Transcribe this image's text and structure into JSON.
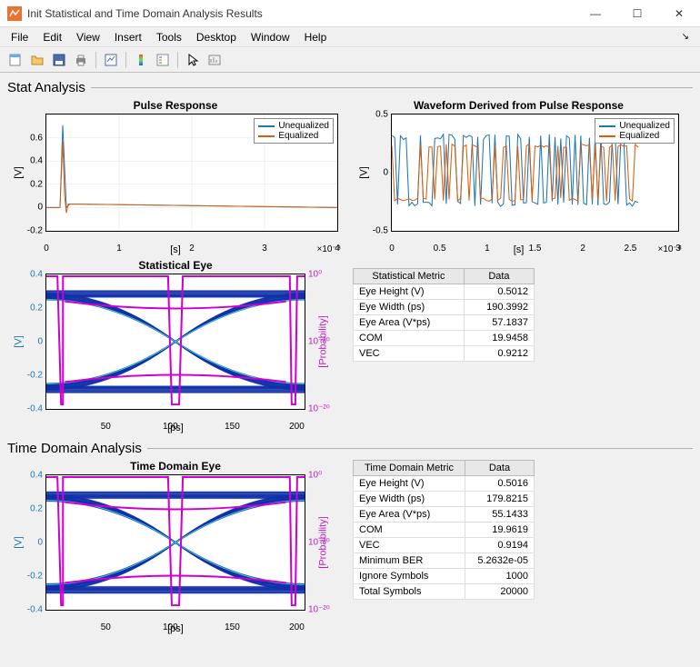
{
  "window": {
    "title": "Init Statistical and Time Domain Analysis Results"
  },
  "menu": {
    "items": [
      "File",
      "Edit",
      "View",
      "Insert",
      "Tools",
      "Desktop",
      "Window",
      "Help"
    ]
  },
  "sections": {
    "stat": {
      "title": "Stat Analysis",
      "pulse": {
        "title": "Pulse Response",
        "ylabel": "[V]",
        "xlabel": "[s]",
        "xexp": "×10⁻⁸",
        "xticks": [
          0,
          1,
          2,
          3,
          4
        ],
        "yticks": [
          -0.2,
          0,
          0.2,
          0.4,
          0.6
        ],
        "legend": [
          "Unequalized",
          "Equalized"
        ],
        "colors": {
          "uneq": "#1f77b4",
          "eq": "#d65f0e",
          "grid": "#e0e0e0"
        }
      },
      "wave": {
        "title": "Waveform Derived from Pulse Response",
        "ylabel": "[V]",
        "xlabel": "[s]",
        "xexp": "×10⁻⁸",
        "xticks": [
          0,
          0.5,
          1,
          1.5,
          2,
          2.5,
          3
        ],
        "yticks": [
          -0.5,
          0,
          0.5
        ],
        "legend": [
          "Unequalized",
          "Equalized"
        ],
        "colors": {
          "uneq": "#1f77b4",
          "eq": "#d65f0e"
        }
      },
      "eye": {
        "title": "Statistical Eye",
        "ylabel": "[V]",
        "y2label": "[Probability]",
        "xlabel": "[ps]",
        "xticks": [
          50,
          100,
          150,
          200
        ],
        "yticks": [
          -0.4,
          -0.2,
          0,
          0.2,
          0.4
        ],
        "y2ticks": [
          "10⁰",
          "10⁻¹⁰",
          "10⁻²⁰"
        ],
        "colors": {
          "ylabel": "#1f77b4",
          "y2label": "#c020c0",
          "eye": "#1030aa",
          "bath": "#d000d0"
        }
      },
      "table": {
        "headers": [
          "Statistical Metric",
          "Data"
        ],
        "rows": [
          [
            "Eye Height (V)",
            "0.5012"
          ],
          [
            "Eye Width (ps)",
            "190.3992"
          ],
          [
            "Eye Area (V*ps)",
            "57.1837"
          ],
          [
            "COM",
            "19.9458"
          ],
          [
            "VEC",
            "0.9212"
          ]
        ]
      }
    },
    "td": {
      "title": "Time Domain Analysis",
      "eye": {
        "title": "Time Domain Eye",
        "ylabel": "[V]",
        "y2label": "[Probability]",
        "xlabel": "[ps]",
        "xticks": [
          50,
          100,
          150,
          200
        ],
        "yticks": [
          -0.4,
          -0.2,
          0,
          0.2,
          0.4
        ],
        "y2ticks": [
          "10⁰",
          "10⁻¹⁰",
          "10⁻²⁰"
        ],
        "colors": {
          "ylabel": "#1f77b4",
          "y2label": "#c020c0",
          "eye": "#1030aa",
          "bath": "#d000d0"
        }
      },
      "table": {
        "headers": [
          "Time Domain Metric",
          "Data"
        ],
        "rows": [
          [
            "Eye Height (V)",
            "0.5016"
          ],
          [
            "Eye Width (ps)",
            "179.8215"
          ],
          [
            "Eye Area (V*ps)",
            "55.1433"
          ],
          [
            "COM",
            "19.9619"
          ],
          [
            "VEC",
            "0.9194"
          ],
          [
            "Minimum BER",
            "5.2632e-05"
          ],
          [
            "Ignore Symbols",
            "1000"
          ],
          [
            "Total Symbols",
            "20000"
          ]
        ]
      }
    }
  }
}
